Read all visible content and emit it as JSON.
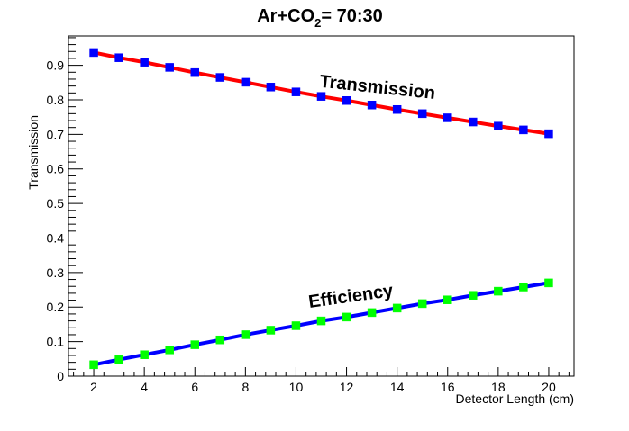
{
  "chart_data": {
    "type": "line",
    "title": "Ar+CO₂= 70:30",
    "title_parts": {
      "main": "Ar+CO",
      "subscript": "2",
      "suffix": "= 70:30"
    },
    "xlabel": "Detector Length (cm)",
    "ylabel": "Transmission",
    "xlim": [
      1,
      21
    ],
    "ylim": [
      0,
      0.985
    ],
    "x_ticks": [
      2,
      4,
      6,
      8,
      10,
      12,
      14,
      16,
      18,
      20
    ],
    "y_ticks": [
      0,
      0.1,
      0.2,
      0.3,
      0.4,
      0.5,
      0.6,
      0.7,
      0.8,
      0.9
    ],
    "x_tick_labels": [
      "2",
      "4",
      "6",
      "8",
      "10",
      "12",
      "14",
      "16",
      "18",
      "20"
    ],
    "y_tick_labels": [
      "0",
      "0.1",
      "0.2",
      "0.3",
      "0.4",
      "0.5",
      "0.6",
      "0.7",
      "0.8",
      "0.9"
    ],
    "grid": false,
    "x": [
      2,
      3,
      4,
      5,
      6,
      7,
      8,
      9,
      10,
      11,
      12,
      13,
      14,
      15,
      16,
      17,
      18,
      19,
      20
    ],
    "series": [
      {
        "line_color": "#ff0000",
        "marker_color": "#0000ff",
        "marker": "square",
        "values": [
          0.937,
          0.922,
          0.909,
          0.894,
          0.879,
          0.865,
          0.851,
          0.837,
          0.823,
          0.81,
          0.798,
          0.785,
          0.772,
          0.76,
          0.748,
          0.736,
          0.724,
          0.713,
          0.702
        ]
      },
      {
        "line_color": "#0000ff",
        "marker_color": "#00ff00",
        "marker": "square",
        "values": [
          0.033,
          0.048,
          0.062,
          0.076,
          0.091,
          0.105,
          0.12,
          0.133,
          0.146,
          0.16,
          0.171,
          0.184,
          0.197,
          0.21,
          0.221,
          0.234,
          0.246,
          0.258,
          0.27
        ]
      }
    ],
    "annotations": [
      {
        "text": "Transmission",
        "x": 13.2,
        "y": 0.82,
        "angle": 6
      },
      {
        "text": "Efficiency",
        "x": 12.2,
        "y": 0.215,
        "angle": -8
      }
    ]
  }
}
